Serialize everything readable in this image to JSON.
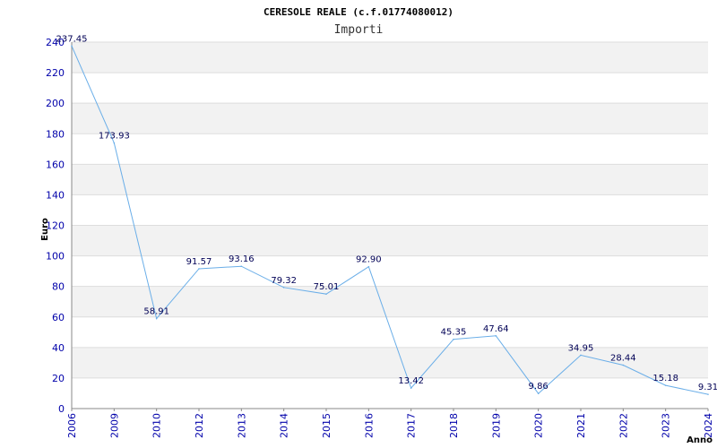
{
  "chart_data": {
    "type": "line",
    "title": "CERESOLE REALE (c.f.01774080012)",
    "subtitle": "Importi",
    "xlabel": "Anno",
    "ylabel": "Euro",
    "ylim": [
      0,
      240
    ],
    "yticks": [
      0,
      20,
      40,
      60,
      80,
      100,
      120,
      140,
      160,
      180,
      200,
      220,
      240
    ],
    "grid": true,
    "categories": [
      "2006",
      "2009",
      "2010",
      "2012",
      "2013",
      "2014",
      "2015",
      "2016",
      "2017",
      "2018",
      "2019",
      "2020",
      "2021",
      "2022",
      "2023",
      "2024"
    ],
    "series": [
      {
        "values": [
          237.45,
          173.93,
          58.91,
          91.57,
          93.16,
          79.32,
          75.01,
          92.9,
          13.42,
          45.35,
          47.64,
          9.86,
          34.95,
          28.44,
          15.18,
          9.31
        ],
        "labels": [
          "237.45",
          "173.93",
          "58.91",
          "91.57",
          "93.16",
          "79.32",
          "75.01",
          "92.90",
          "13.42",
          "45.35",
          "47.64",
          "9.86",
          "34.95",
          "28.44",
          "15.18",
          "9.31"
        ]
      }
    ],
    "colors": {
      "line": "#6aaee8",
      "band": "#f2f2f2",
      "grid": "#dddddd",
      "tick_text": "#0000aa",
      "label_text": "#000055"
    }
  }
}
